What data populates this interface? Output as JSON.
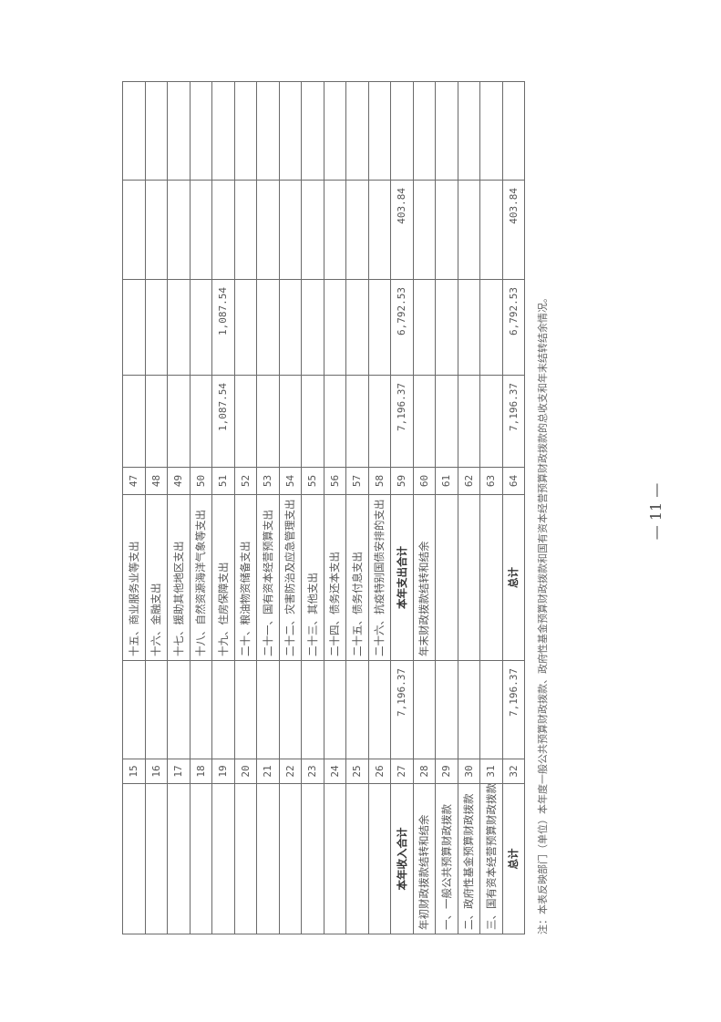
{
  "table": {
    "rows": [
      {
        "income_item": "",
        "income_no": "15",
        "income_amount": "",
        "expense_item": "十五、商业服务业等支出",
        "expense_no": "47",
        "total": "",
        "general": "",
        "fund": "",
        "state_capital": ""
      },
      {
        "income_item": "",
        "income_no": "16",
        "income_amount": "",
        "expense_item": "十六、金融支出",
        "expense_no": "48",
        "total": "",
        "general": "",
        "fund": "",
        "state_capital": ""
      },
      {
        "income_item": "",
        "income_no": "17",
        "income_amount": "",
        "expense_item": "十七、援助其他地区支出",
        "expense_no": "49",
        "total": "",
        "general": "",
        "fund": "",
        "state_capital": ""
      },
      {
        "income_item": "",
        "income_no": "18",
        "income_amount": "",
        "expense_item": "十八、自然资源海洋气象等支出",
        "expense_no": "50",
        "total": "",
        "general": "",
        "fund": "",
        "state_capital": ""
      },
      {
        "income_item": "",
        "income_no": "19",
        "income_amount": "",
        "expense_item": "十九、住房保障支出",
        "expense_no": "51",
        "total": "1,087.54",
        "general": "1,087.54",
        "fund": "",
        "state_capital": ""
      },
      {
        "income_item": "",
        "income_no": "20",
        "income_amount": "",
        "expense_item": "二十、粮油物资储备支出",
        "expense_no": "52",
        "total": "",
        "general": "",
        "fund": "",
        "state_capital": ""
      },
      {
        "income_item": "",
        "income_no": "21",
        "income_amount": "",
        "expense_item": "二十一、国有资本经营预算支出",
        "expense_no": "53",
        "total": "",
        "general": "",
        "fund": "",
        "state_capital": ""
      },
      {
        "income_item": "",
        "income_no": "22",
        "income_amount": "",
        "expense_item": "二十二、灾害防治及应急管理支出",
        "expense_no": "54",
        "total": "",
        "general": "",
        "fund": "",
        "state_capital": ""
      },
      {
        "income_item": "",
        "income_no": "23",
        "income_amount": "",
        "expense_item": "二十三、其他支出",
        "expense_no": "55",
        "total": "",
        "general": "",
        "fund": "",
        "state_capital": ""
      },
      {
        "income_item": "",
        "income_no": "24",
        "income_amount": "",
        "expense_item": "二十四、债务还本支出",
        "expense_no": "56",
        "total": "",
        "general": "",
        "fund": "",
        "state_capital": ""
      },
      {
        "income_item": "",
        "income_no": "25",
        "income_amount": "",
        "expense_item": "二十五、债务付息支出",
        "expense_no": "57",
        "total": "",
        "general": "",
        "fund": "",
        "state_capital": ""
      },
      {
        "income_item": "",
        "income_no": "26",
        "income_amount": "",
        "expense_item": "二十六、抗疫特别国债安排的支出",
        "expense_no": "58",
        "total": "",
        "general": "",
        "fund": "",
        "state_capital": ""
      },
      {
        "income_item": "本年收入合计",
        "income_no": "27",
        "income_amount": "7,196.37",
        "expense_item": "本年支出合计",
        "expense_no": "59",
        "total": "7,196.37",
        "general": "6,792.53",
        "fund": "403.84",
        "state_capital": "",
        "bold": true
      },
      {
        "income_item": "年初财政拨款结转和结余",
        "income_no": "28",
        "income_amount": "",
        "expense_item": "年末财政拨款结转和结余",
        "expense_no": "60",
        "total": "",
        "general": "",
        "fund": "",
        "state_capital": ""
      },
      {
        "income_item": "一、一般公共预算财政拨款",
        "income_no": "29",
        "income_amount": "",
        "expense_item": "",
        "expense_no": "61",
        "total": "",
        "general": "",
        "fund": "",
        "state_capital": ""
      },
      {
        "income_item": "二、政府性基金预算财政拨款",
        "income_no": "30",
        "income_amount": "",
        "expense_item": "",
        "expense_no": "62",
        "total": "",
        "general": "",
        "fund": "",
        "state_capital": ""
      },
      {
        "income_item": "三、国有资本经营预算财政拨款",
        "income_no": "31",
        "income_amount": "",
        "expense_item": "",
        "expense_no": "63",
        "total": "",
        "general": "",
        "fund": "",
        "state_capital": ""
      },
      {
        "income_item": "总计",
        "income_no": "32",
        "income_amount": "7,196.37",
        "expense_item": "总计",
        "expense_no": "64",
        "total": "7,196.37",
        "general": "6,792.53",
        "fund": "403.84",
        "state_capital": "",
        "bold": true
      }
    ]
  },
  "note": "注：本表反映部门（单位）本年度一般公共预算财政拨款、政府性基金预算财政拨款和国有资本经营预算财政拨款的总收支和年末结转结余情况。",
  "page_number": "— 11 —"
}
